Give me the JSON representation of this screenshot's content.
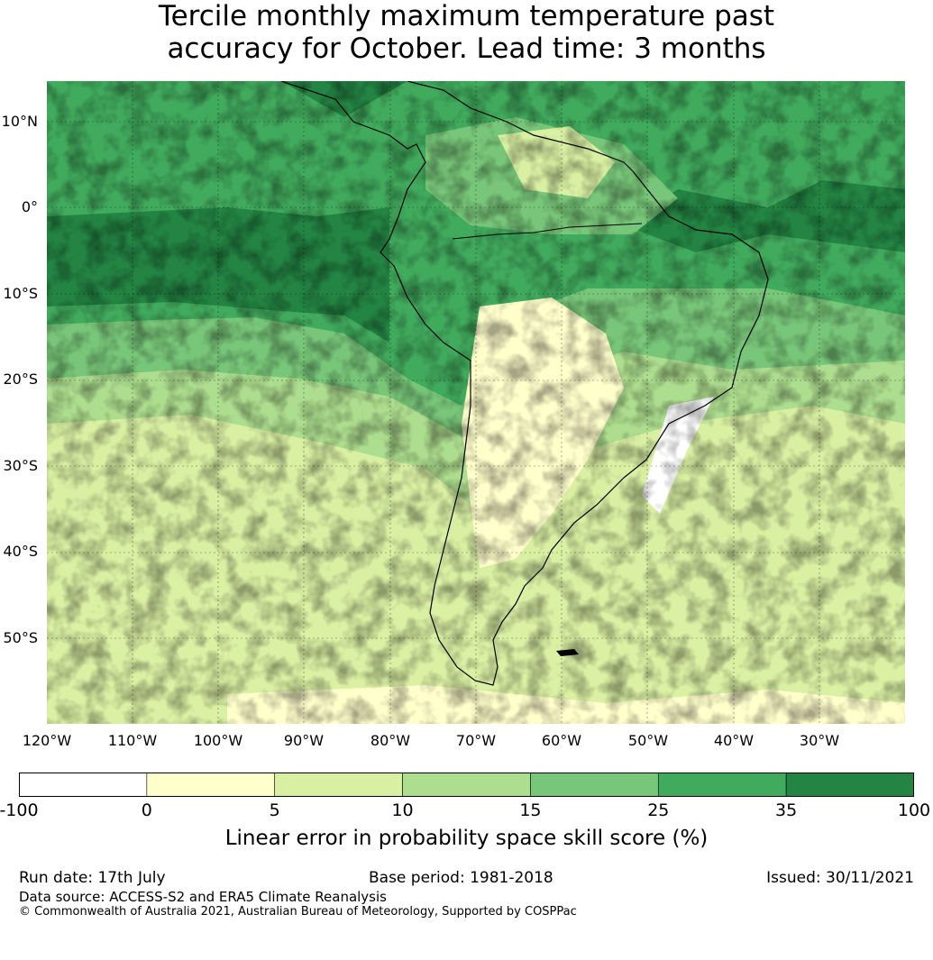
{
  "title": {
    "line1": "Tercile monthly maximum temperature past",
    "line2": "accuracy for October. Lead time: 3 months"
  },
  "map": {
    "region": "South America",
    "lat_labels": [
      "10°N",
      "0°",
      "10°S",
      "20°S",
      "30°S",
      "40°S",
      "50°S"
    ],
    "lon_labels": [
      "120°W",
      "110°W",
      "100°W",
      "90°W",
      "80°W",
      "70°W",
      "60°W",
      "50°W",
      "40°W",
      "30°W"
    ],
    "gridlines": true
  },
  "colorbar": {
    "ticks": [
      "-100",
      "0",
      "5",
      "10",
      "15",
      "25",
      "35",
      "100"
    ],
    "colors": [
      "#ffffff",
      "#ffffcc",
      "#d9f0a3",
      "#addd8e",
      "#78c679",
      "#41ab5d",
      "#238443"
    ],
    "label": "Linear error in probability space skill score (%)"
  },
  "footer": {
    "run_date": "Run date: 17th July",
    "base_period": "Base period: 1981-2018",
    "issued": "Issued: 30/11/2021",
    "data_source": "Data source: ACCESS-S2 and ERA5 Climate Reanalysis",
    "copyright": "© Commonwealth of Australia 2021, Australian Bureau of Meteorology, Supported by COSPPac"
  }
}
